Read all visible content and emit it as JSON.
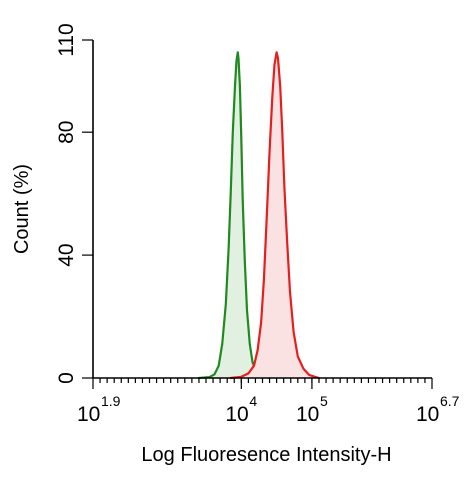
{
  "chart_data": {
    "type": "area",
    "xlabel": "Log Fluoresence Intensity-H",
    "ylabel": "Count  (%)",
    "xscale": "log10",
    "xlim_log10": [
      1.9,
      6.7
    ],
    "ylim": [
      0,
      110
    ],
    "grid": false,
    "legend": "none",
    "x_ticks": [
      {
        "base": "10",
        "exp": "1.9",
        "log10": 1.9
      },
      {
        "base": "10",
        "exp": "4",
        "log10": 4
      },
      {
        "base": "10",
        "exp": "5",
        "log10": 5
      },
      {
        "base": "10",
        "exp": "6.7",
        "log10": 6.7
      }
    ],
    "y_ticks": [
      {
        "label": "0",
        "value": 0
      },
      {
        "label": "40",
        "value": 40
      },
      {
        "label": "80",
        "value": 80
      },
      {
        "label": "110",
        "value": 110
      }
    ],
    "series": [
      {
        "color": "#1f8a1f",
        "fill": "#e2f0e2",
        "points_log10_x": [
          [
            3.4,
            0
          ],
          [
            3.55,
            0.3
          ],
          [
            3.62,
            1.2
          ],
          [
            3.68,
            4
          ],
          [
            3.73,
            11
          ],
          [
            3.78,
            24
          ],
          [
            3.82,
            42
          ],
          [
            3.85,
            60
          ],
          [
            3.88,
            80
          ],
          [
            3.91,
            95
          ],
          [
            3.93,
            103
          ],
          [
            3.95,
            106
          ],
          [
            3.96,
            104
          ],
          [
            3.98,
            95
          ],
          [
            4.0,
            78
          ],
          [
            4.02,
            58
          ],
          [
            4.05,
            38
          ],
          [
            4.08,
            22
          ],
          [
            4.12,
            11
          ],
          [
            4.16,
            5
          ],
          [
            4.22,
            2
          ],
          [
            4.3,
            0.6
          ],
          [
            4.4,
            0
          ]
        ]
      },
      {
        "color": "#e61e1e",
        "fill": "#fbe2e2",
        "points_log10_x": [
          [
            3.85,
            0
          ],
          [
            4.0,
            0.4
          ],
          [
            4.1,
            1.5
          ],
          [
            4.18,
            4
          ],
          [
            4.23,
            9
          ],
          [
            4.28,
            18
          ],
          [
            4.32,
            32
          ],
          [
            4.36,
            52
          ],
          [
            4.4,
            74
          ],
          [
            4.44,
            92
          ],
          [
            4.47,
            102
          ],
          [
            4.5,
            106
          ],
          [
            4.52,
            104
          ],
          [
            4.55,
            95
          ],
          [
            4.58,
            80
          ],
          [
            4.61,
            62
          ],
          [
            4.65,
            44
          ],
          [
            4.69,
            28
          ],
          [
            4.74,
            15
          ],
          [
            4.8,
            7
          ],
          [
            4.88,
            3
          ],
          [
            4.96,
            1
          ],
          [
            5.1,
            0
          ]
        ]
      }
    ]
  }
}
